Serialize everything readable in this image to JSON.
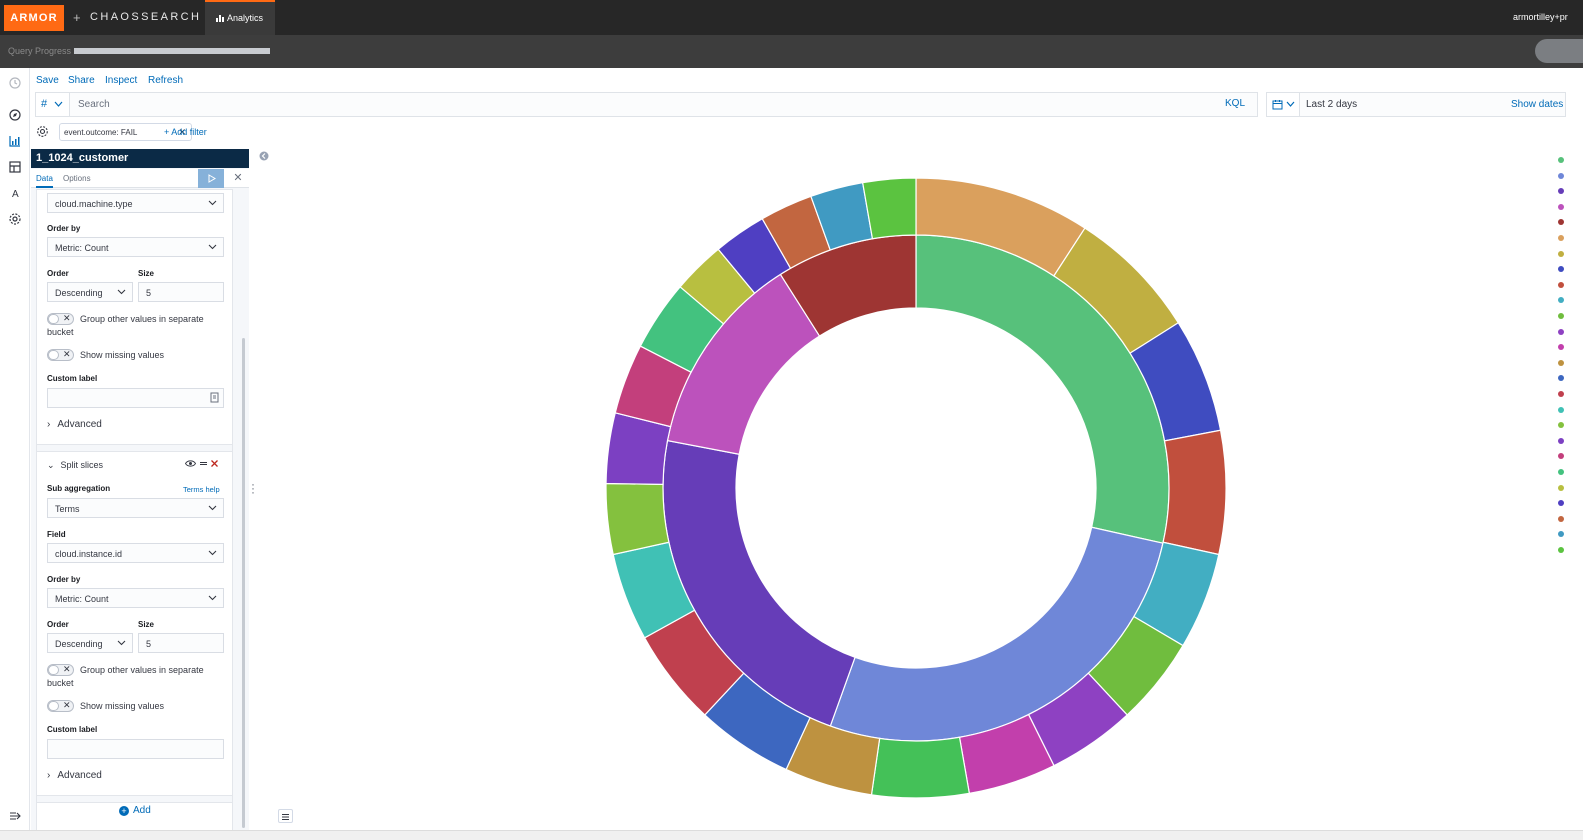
{
  "header": {
    "brand": "ARMOR",
    "plus": "+",
    "partner": "CHAOSSEARCH",
    "tab": "Analytics",
    "user": "armortilley+pr"
  },
  "progress": {
    "label": "Query Progress",
    "fraction": 1.0
  },
  "toolbar": {
    "save": "Save",
    "share": "Share",
    "inspect": "Inspect",
    "refresh": "Refresh"
  },
  "search": {
    "prefix": "#",
    "placeholder": "Search",
    "language": "KQL"
  },
  "date": {
    "range": "Last 2 days",
    "show_dates": "Show dates"
  },
  "filters": {
    "pill": "event.outcome: FAIL",
    "add": "+ Add filter"
  },
  "editor": {
    "title": "1_1024_customer",
    "tabs": {
      "data": "Data",
      "options": "Options"
    },
    "bucket1": {
      "field_value": "cloud.machine.type",
      "order_by_label": "Order by",
      "order_by_value": "Metric: Count",
      "order_label": "Order",
      "order_value": "Descending",
      "size_label": "Size",
      "size_value": "5",
      "group_other": "Group other values in separate bucket",
      "show_missing": "Show missing values",
      "custom_label": "Custom label",
      "advanced": "Advanced"
    },
    "bucket2": {
      "title": "Split slices",
      "sub_agg_label": "Sub aggregation",
      "terms_help": "Terms help",
      "sub_agg_value": "Terms",
      "field_label": "Field",
      "field_value": "cloud.instance.id",
      "order_by_label": "Order by",
      "order_by_value": "Metric: Count",
      "order_label": "Order",
      "order_value": "Descending",
      "size_label": "Size",
      "size_value": "5",
      "group_other": "Group other values in separate bucket",
      "show_missing": "Show missing values",
      "custom_label": "Custom label",
      "advanced": "Advanced"
    },
    "add": "Add"
  },
  "chart_data": {
    "type": "pie",
    "donut": true,
    "rings": [
      {
        "name": "inner",
        "slices": [
          {
            "value": 28.5,
            "color": "#57c17b"
          },
          {
            "value": 27.0,
            "color": "#6f87d8"
          },
          {
            "value": 22.5,
            "color": "#663db8"
          },
          {
            "value": 13.0,
            "color": "#bc52bc"
          },
          {
            "value": 9.0,
            "color": "#9e3533"
          }
        ]
      },
      {
        "name": "outer",
        "slices": [
          {
            "value": 10.0,
            "color": "#daa05d"
          },
          {
            "value": 7.5,
            "color": "#c0af41"
          },
          {
            "value": 6.5,
            "color": "#3f4cc0"
          },
          {
            "value": 7.0,
            "color": "#c14f3d"
          },
          {
            "value": 5.5,
            "color": "#42aec2"
          },
          {
            "value": 5.0,
            "color": "#70bd3e"
          },
          {
            "value": 5.0,
            "color": "#8e41c2"
          },
          {
            "value": 5.0,
            "color": "#c23fac"
          },
          {
            "value": 5.5,
            "color": "#44c158"
          },
          {
            "value": 5.0,
            "color": "#be9240"
          },
          {
            "value": 5.5,
            "color": "#3d67c0"
          },
          {
            "value": 5.5,
            "color": "#c0404e"
          },
          {
            "value": 5.0,
            "color": "#40c1b5"
          },
          {
            "value": 4.0,
            "color": "#84c13e"
          },
          {
            "value": 4.0,
            "color": "#7c40c2"
          },
          {
            "value": 4.0,
            "color": "#c33f7c"
          },
          {
            "value": 4.0,
            "color": "#43c27f"
          },
          {
            "value": 3.0,
            "color": "#b8bf40"
          },
          {
            "value": 3.0,
            "color": "#4f3fc2"
          },
          {
            "value": 3.0,
            "color": "#c26640"
          },
          {
            "value": 3.0,
            "color": "#409ac2"
          },
          {
            "value": 3.0,
            "color": "#5bc340"
          }
        ]
      }
    ],
    "legend_colors": [
      "#57c17b",
      "#6f87d8",
      "#663db8",
      "#bc52bc",
      "#9e3533",
      "#daa05d",
      "#c0af41",
      "#3f4cc0",
      "#c14f3d",
      "#42aec2",
      "#70bd3e",
      "#8e41c2",
      "#c23fac",
      "#be9240",
      "#3d67c0",
      "#c0404e",
      "#40c1b5",
      "#84c13e",
      "#7c40c2",
      "#c33f7c",
      "#43c27f",
      "#b8bf40",
      "#4f3fc2",
      "#c26640",
      "#409ac2",
      "#5bc340"
    ]
  }
}
